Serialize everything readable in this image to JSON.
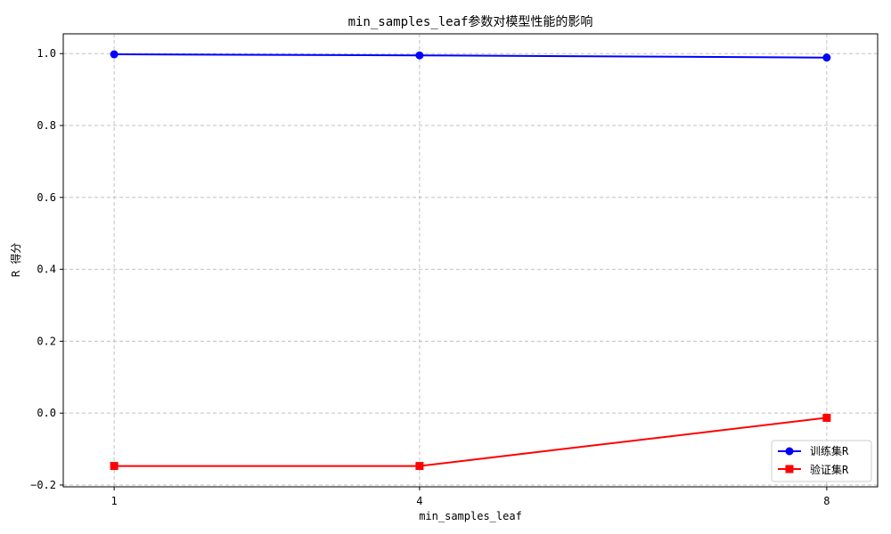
{
  "chart_data": {
    "type": "line",
    "title": "min_samples_leaf参数对模型性能的影响",
    "xlabel": "min_samples_leaf",
    "ylabel": "R 得分",
    "categories": [
      "1",
      "4",
      "8"
    ],
    "x": [
      1,
      4,
      8
    ],
    "xlim": [
      0.5,
      8.5
    ],
    "ylim": [
      -0.205,
      1.055
    ],
    "yticks": [
      -0.2,
      0.0,
      0.2,
      0.4,
      0.6,
      0.8,
      1.0
    ],
    "ytick_labels": [
      "−0.2",
      "0.0",
      "0.2",
      "0.4",
      "0.6",
      "0.8",
      "1.0"
    ],
    "grid": true,
    "legend_position": "bottom-right",
    "series": [
      {
        "name": "训练集R",
        "values": [
          0.998,
          0.995,
          0.989
        ],
        "color": "#0000ff",
        "marker": "circle"
      },
      {
        "name": "验证集R",
        "values": [
          -0.147,
          -0.147,
          -0.013
        ],
        "color": "#ff0000",
        "marker": "square"
      }
    ]
  }
}
